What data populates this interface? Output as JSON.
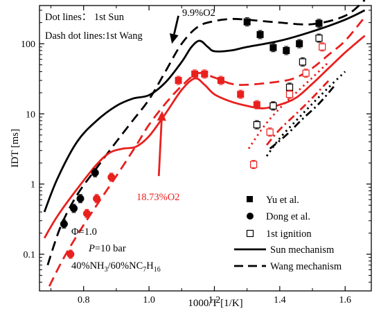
{
  "chart_data": {
    "type": "line",
    "xlabel": "1000/T [1/K]",
    "ylabel": "IDT [ms]",
    "xlim": [
      0.665,
      1.68
    ],
    "ylim": [
      0.03,
      350
    ],
    "yscale": "log",
    "x_ticks": [
      {
        "value": 0.8,
        "label": "0.8"
      },
      {
        "value": 1.0,
        "label": "1.0"
      },
      {
        "value": 1.2,
        "label": "1.2"
      },
      {
        "value": 1.4,
        "label": "1.4"
      },
      {
        "value": 1.6,
        "label": "1.6"
      }
    ],
    "y_ticks": [
      {
        "value": 0.1,
        "label": "0.1"
      },
      {
        "value": 1,
        "label": "1"
      },
      {
        "value": 10,
        "label": "10"
      },
      {
        "value": 100,
        "label": "100"
      }
    ],
    "top_notes": [
      "Dot lines： 1st Sun",
      "Dash dot lines:1st Wang"
    ],
    "conditions": {
      "phi": "Φ=1.0",
      "pressure_symbol": "P",
      "pressure_value": "=10 bar",
      "mixture": {
        "a": "40%NH",
        "a_sub": "3",
        "b": "/60%NC",
        "b_sub": "7",
        "c": "H",
        "c_sub": "16"
      }
    },
    "annotations": [
      {
        "text": "9.9%O2",
        "color": "#000000",
        "arrow_from": [
          1.09,
          250
        ],
        "arrow_to": [
          1.07,
          100
        ]
      },
      {
        "text": "18.73%O2",
        "color": "#e8201e",
        "arrow_from": [
          1.03,
          1.3
        ],
        "arrow_to": [
          1.04,
          11
        ]
      }
    ],
    "legend": {
      "position": "bottom-right",
      "entries": [
        {
          "label": "Yu et al.",
          "marker": "square-filled"
        },
        {
          "label": "Dong et al.",
          "marker": "circle-filled"
        },
        {
          "label": "1st ignition",
          "marker": "square-open"
        },
        {
          "label": "Sun mechanism",
          "style": "solid"
        },
        {
          "label": "Wang mechanism",
          "style": "dash"
        }
      ]
    },
    "colors": {
      "black_series": "#000000",
      "red_series": "#e8201e"
    },
    "points": {
      "yu_black_squares": {
        "color": "#000000",
        "marker": "square-filled",
        "x": [
          1.3,
          1.34,
          1.38,
          1.42,
          1.46,
          1.52
        ],
        "y": [
          205,
          135,
          88,
          80,
          100,
          195
        ]
      },
      "yu_red_squares": {
        "color": "#e8201e",
        "marker": "square-filled",
        "x": [
          1.09,
          1.14,
          1.17,
          1.22,
          1.28,
          1.33,
          1.38
        ],
        "y": [
          30,
          37,
          37,
          30,
          19,
          13.5,
          13
        ]
      },
      "dong_black_circles": {
        "color": "#000000",
        "marker": "circle-filled",
        "x": [
          0.74,
          0.77,
          0.79,
          0.835
        ],
        "y": [
          0.27,
          0.45,
          0.62,
          1.45
        ]
      },
      "dong_red_circles": {
        "color": "#e8201e",
        "marker": "circle-filled",
        "x": [
          0.76,
          0.81,
          0.84,
          0.885
        ],
        "y": [
          0.1,
          0.38,
          0.62,
          1.25
        ]
      },
      "first_black_open": {
        "color": "#000000",
        "marker": "square-open",
        "x": [
          1.33,
          1.38,
          1.43,
          1.47,
          1.52
        ],
        "y": [
          7,
          13,
          24,
          55,
          120
        ]
      },
      "first_red_open": {
        "color": "#e8201e",
        "marker": "square-open",
        "x": [
          1.32,
          1.37,
          1.43,
          1.48,
          1.53
        ],
        "y": [
          1.9,
          5.5,
          19,
          38,
          90
        ]
      }
    },
    "curves": {
      "sun_black": {
        "color": "#000000",
        "style": "solid",
        "x": [
          0.68,
          0.72,
          0.78,
          0.84,
          0.9,
          0.95,
          1.0,
          1.05,
          1.1,
          1.13,
          1.155,
          1.18,
          1.2,
          1.25,
          1.3,
          1.4,
          1.5,
          1.6,
          1.66
        ],
        "y": [
          0.4,
          1.2,
          4,
          8,
          13,
          16.5,
          18.5,
          28,
          55,
          90,
          110,
          90,
          78,
          80,
          90,
          110,
          150,
          220,
          300
        ]
      },
      "wang_black": {
        "color": "#000000",
        "style": "dash",
        "x": [
          0.69,
          0.73,
          0.78,
          0.84,
          0.9,
          0.95,
          1.0,
          1.05,
          1.1,
          1.15,
          1.2,
          1.25,
          1.3,
          1.4,
          1.5,
          1.6,
          1.66
        ],
        "y": [
          0.07,
          0.25,
          0.7,
          1.7,
          4,
          8,
          16,
          40,
          100,
          175,
          210,
          225,
          220,
          200,
          190,
          250,
          420
        ]
      },
      "sun_red": {
        "color": "#e8201e",
        "style": "solid",
        "x": [
          0.68,
          0.72,
          0.78,
          0.84,
          0.88,
          0.92,
          0.96,
          1.0,
          1.05,
          1.1,
          1.14,
          1.17,
          1.2,
          1.25,
          1.3,
          1.35,
          1.4,
          1.45,
          1.5,
          1.55,
          1.6,
          1.66
        ],
        "y": [
          0.17,
          0.35,
          0.85,
          1.9,
          2.8,
          3.2,
          3.4,
          4.8,
          10,
          22,
          32,
          26,
          19,
          15,
          13,
          12,
          13.5,
          17,
          27,
          45,
          75,
          130
        ]
      },
      "wang_red": {
        "color": "#e8201e",
        "style": "dash",
        "x": [
          0.695,
          0.74,
          0.79,
          0.84,
          0.9,
          0.96,
          1.0,
          1.05,
          1.1,
          1.15,
          1.2,
          1.25,
          1.3,
          1.4,
          1.45,
          1.5,
          1.55,
          1.6,
          1.66
        ],
        "y": [
          0.035,
          0.09,
          0.22,
          0.5,
          1.3,
          3.5,
          7,
          14,
          25,
          38,
          33,
          27,
          26,
          29,
          33,
          45,
          70,
          110,
          240
        ]
      },
      "first_sun_black": {
        "color": "#000000",
        "style": "dot",
        "x": [
          1.36,
          1.4,
          1.45,
          1.5,
          1.55,
          1.6
        ],
        "y": [
          2.5,
          4.5,
          8,
          14,
          24,
          40
        ]
      },
      "first_sun_red": {
        "color": "#e8201e",
        "style": "dot",
        "x": [
          1.305,
          1.35,
          1.4,
          1.45,
          1.5,
          1.55
        ],
        "y": [
          3.2,
          6.5,
          12,
          20,
          33,
          55
        ]
      },
      "first_wang_black": {
        "color": "#000000",
        "style": "dashdot",
        "x": [
          1.37,
          1.42,
          1.47,
          1.52,
          1.57
        ],
        "y": [
          3.2,
          5,
          8.5,
          14,
          26
        ]
      },
      "first_wang_red": {
        "color": "#e8201e",
        "style": "dashdot",
        "x": [
          1.36,
          1.4,
          1.45,
          1.5,
          1.55
        ],
        "y": [
          3.6,
          6,
          10,
          17,
          30
        ]
      }
    }
  }
}
